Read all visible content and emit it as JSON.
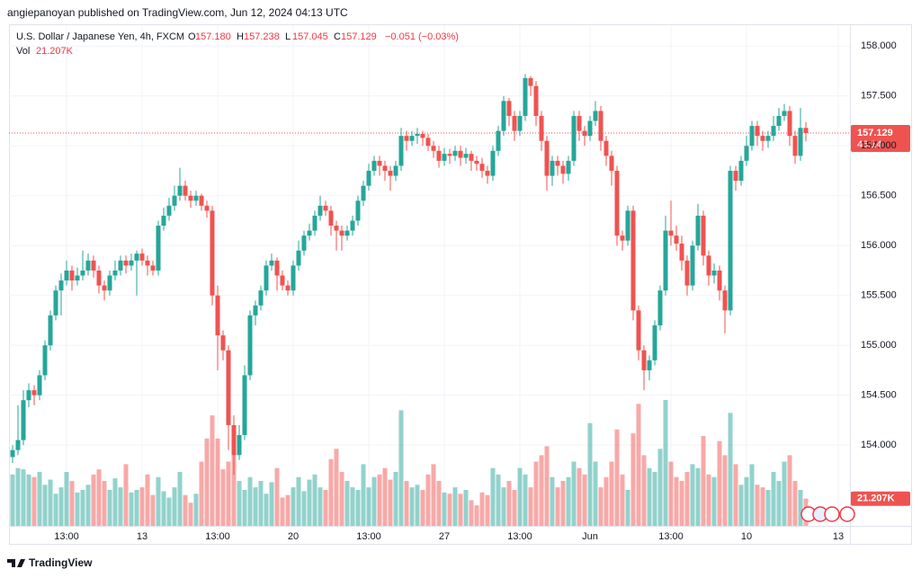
{
  "header": "angiepanoyan published on TradingView.com, Jun 12, 2024 04:13 UTC",
  "footer": "TradingView",
  "chart_data": {
    "type": "candlestick",
    "legend": {
      "symbol": "U.S. Dollar / Japanese Yen, 4h, FXCM",
      "keys": [
        "O",
        "H",
        "L",
        "C"
      ],
      "values": [
        "157.180",
        "157.238",
        "157.045",
        "157.129"
      ],
      "change": "−0.051 (−0.03%)",
      "volume_key": "Vol",
      "volume": "21.207K"
    },
    "countdown": "46:14",
    "last_volume_label": "21.207K",
    "up_color": "#26a69a",
    "down_color": "#ef5350",
    "ylim": [
      153.19,
      158.21
    ],
    "yticks": [
      {
        "value": 154,
        "label": "154.000"
      },
      {
        "value": 154.5,
        "label": "154.500"
      },
      {
        "value": 155,
        "label": "155.000"
      },
      {
        "value": 155.5,
        "label": "155.500"
      },
      {
        "value": 156,
        "label": "156.000"
      },
      {
        "value": 156.5,
        "label": "156.500"
      },
      {
        "value": 157,
        "label": "157.000"
      },
      {
        "value": 157.5,
        "label": "157.500"
      },
      {
        "value": 158,
        "label": "158.000"
      }
    ],
    "xticks": [
      {
        "value": 10,
        "label": "13:00"
      },
      {
        "value": 24,
        "label": "13"
      },
      {
        "value": 38,
        "label": "13:00"
      },
      {
        "value": 52,
        "label": "20"
      },
      {
        "value": 66,
        "label": "13:00"
      },
      {
        "value": 80,
        "label": "27"
      },
      {
        "value": 94,
        "label": "13:00"
      },
      {
        "value": 107,
        "label": "Jun"
      },
      {
        "value": 122,
        "label": "13:00"
      },
      {
        "value": 136,
        "label": "10"
      },
      {
        "value": 153,
        "label": "13"
      }
    ],
    "open": [
      153.88,
      153.95,
      154.05,
      154.45,
      154.55,
      154.5,
      154.7,
      155.0,
      155.3,
      155.55,
      155.65,
      155.75,
      155.65,
      155.7,
      155.75,
      155.85,
      155.75,
      155.6,
      155.55,
      155.7,
      155.75,
      155.85,
      155.8,
      155.85,
      155.92,
      155.85,
      155.8,
      155.75,
      156.2,
      156.3,
      156.4,
      156.5,
      156.6,
      156.5,
      156.45,
      156.5,
      156.4,
      156.35,
      155.5,
      155.1,
      154.95,
      154.2,
      153.9,
      154.1,
      154.7,
      155.3,
      155.4,
      155.55,
      155.8,
      155.85,
      155.7,
      155.6,
      155.55,
      155.8,
      155.95,
      156.1,
      156.15,
      156.3,
      156.4,
      156.35,
      156.2,
      156.15,
      156.1,
      156.15,
      156.25,
      156.45,
      156.6,
      156.75,
      156.85,
      156.8,
      156.75,
      156.7,
      156.8,
      157.1,
      157.05,
      157.1,
      157.12,
      157.08,
      157.0,
      156.95,
      156.85,
      156.92,
      156.9,
      156.95,
      156.88,
      156.92,
      156.85,
      156.82,
      156.75,
      156.7,
      156.95,
      157.15,
      157.45,
      157.3,
      157.15,
      157.3,
      157.68,
      157.6,
      157.3,
      157.05,
      156.7,
      156.85,
      156.8,
      156.72,
      156.85,
      157.3,
      157.15,
      157.1,
      157.25,
      157.35,
      157.05,
      156.9,
      156.75,
      156.1,
      156.05,
      156.35,
      155.35,
      154.95,
      154.75,
      154.85,
      155.2,
      155.55,
      156.15,
      156.1,
      156.02,
      155.85,
      155.6,
      156.0,
      156.3,
      155.9,
      155.7,
      155.75,
      155.55,
      155.35,
      156.75,
      156.65,
      156.85,
      157.0,
      157.2,
      157.1,
      157.05,
      157.1,
      157.2,
      157.3,
      157.35,
      157.1,
      156.9,
      157.18
    ],
    "high": [
      154.0,
      154.4,
      154.55,
      154.62,
      154.6,
      154.75,
      155.05,
      155.35,
      155.6,
      155.72,
      155.85,
      155.8,
      155.78,
      155.95,
      155.92,
      155.9,
      155.8,
      155.65,
      155.75,
      155.85,
      155.9,
      155.9,
      155.92,
      155.95,
      155.97,
      155.9,
      155.85,
      156.25,
      156.38,
      156.48,
      156.6,
      156.78,
      156.65,
      156.55,
      156.55,
      156.52,
      156.45,
      156.4,
      155.6,
      155.15,
      155.0,
      154.3,
      154.2,
      154.8,
      155.35,
      155.45,
      155.6,
      155.85,
      155.92,
      155.88,
      155.75,
      155.65,
      155.85,
      156.05,
      156.15,
      156.22,
      156.35,
      156.5,
      156.45,
      156.4,
      156.25,
      156.2,
      156.2,
      156.3,
      156.5,
      156.65,
      156.82,
      156.9,
      156.9,
      156.85,
      156.8,
      156.85,
      157.18,
      157.15,
      157.15,
      157.18,
      157.15,
      157.12,
      157.05,
      157.0,
      156.98,
      156.97,
      157.0,
      157.0,
      156.98,
      156.95,
      156.9,
      156.88,
      156.8,
      157.0,
      157.2,
      157.5,
      157.48,
      157.35,
      157.35,
      157.72,
      157.7,
      157.65,
      157.35,
      157.1,
      156.9,
      156.9,
      156.85,
      156.9,
      157.35,
      157.35,
      157.2,
      157.3,
      157.45,
      157.4,
      157.1,
      156.95,
      156.8,
      156.15,
      156.4,
      156.4,
      155.4,
      155.0,
      154.9,
      155.25,
      155.6,
      156.3,
      156.45,
      156.2,
      156.1,
      155.9,
      156.05,
      156.42,
      156.35,
      155.95,
      155.82,
      155.8,
      155.6,
      156.8,
      156.8,
      156.9,
      157.1,
      157.25,
      157.25,
      157.15,
      157.15,
      157.3,
      157.38,
      157.42,
      157.4,
      157.15,
      157.38,
      157.238
    ],
    "low": [
      153.82,
      153.9,
      154.0,
      154.38,
      154.4,
      154.45,
      154.65,
      154.95,
      155.25,
      155.3,
      155.6,
      155.55,
      155.6,
      155.65,
      155.7,
      155.68,
      155.52,
      155.45,
      155.5,
      155.65,
      155.7,
      155.72,
      155.75,
      155.5,
      155.8,
      155.7,
      155.7,
      155.7,
      156.15,
      156.25,
      156.35,
      156.45,
      156.45,
      156.38,
      156.4,
      156.35,
      156.28,
      155.4,
      154.75,
      154.85,
      153.95,
      153.7,
      153.85,
      154.05,
      154.65,
      155.2,
      155.35,
      155.5,
      155.75,
      155.55,
      155.55,
      155.5,
      155.5,
      155.75,
      155.9,
      156.05,
      156.1,
      156.25,
      156.3,
      156.1,
      155.95,
      155.95,
      156.05,
      156.1,
      156.2,
      156.4,
      156.55,
      156.7,
      156.7,
      156.65,
      156.55,
      156.65,
      156.75,
      156.95,
      157.0,
      157.02,
      157.0,
      156.95,
      156.88,
      156.78,
      156.8,
      156.82,
      156.85,
      156.8,
      156.82,
      156.75,
      156.75,
      156.68,
      156.62,
      156.65,
      156.9,
      157.1,
      157.2,
      157.05,
      157.1,
      157.25,
      157.5,
      157.2,
      156.95,
      156.55,
      156.6,
      156.7,
      156.62,
      156.65,
      156.8,
      157.05,
      157.0,
      157.05,
      157.2,
      156.95,
      156.8,
      156.6,
      156.0,
      155.95,
      156.0,
      155.25,
      154.85,
      154.55,
      154.65,
      154.8,
      155.15,
      155.5,
      156.0,
      155.95,
      155.75,
      155.5,
      155.55,
      155.95,
      155.8,
      155.6,
      155.62,
      155.45,
      155.12,
      155.3,
      156.55,
      156.6,
      156.8,
      156.95,
      157.0,
      156.95,
      156.98,
      157.05,
      157.15,
      157.25,
      157.0,
      156.82,
      156.85,
      157.045
    ],
    "close": [
      153.95,
      154.05,
      154.45,
      154.55,
      154.5,
      154.7,
      155.0,
      155.3,
      155.55,
      155.65,
      155.75,
      155.65,
      155.7,
      155.75,
      155.85,
      155.75,
      155.6,
      155.55,
      155.7,
      155.75,
      155.85,
      155.8,
      155.85,
      155.92,
      155.85,
      155.8,
      155.75,
      156.2,
      156.3,
      156.4,
      156.5,
      156.6,
      156.5,
      156.45,
      156.5,
      156.4,
      156.35,
      155.5,
      155.1,
      154.95,
      154.2,
      153.9,
      154.1,
      154.7,
      155.3,
      155.4,
      155.55,
      155.8,
      155.85,
      155.7,
      155.6,
      155.55,
      155.8,
      155.95,
      156.1,
      156.15,
      156.3,
      156.4,
      156.35,
      156.2,
      156.15,
      156.1,
      156.15,
      156.25,
      156.45,
      156.6,
      156.75,
      156.85,
      156.8,
      156.75,
      156.7,
      156.8,
      157.1,
      157.05,
      157.1,
      157.12,
      157.08,
      157.0,
      156.95,
      156.85,
      156.92,
      156.9,
      156.95,
      156.88,
      156.92,
      156.85,
      156.82,
      156.75,
      156.7,
      156.95,
      157.15,
      157.45,
      157.3,
      157.15,
      157.3,
      157.68,
      157.6,
      157.3,
      157.05,
      156.7,
      156.85,
      156.8,
      156.72,
      156.85,
      157.3,
      157.15,
      157.1,
      157.25,
      157.35,
      157.05,
      156.9,
      156.75,
      156.1,
      156.05,
      156.35,
      155.35,
      154.95,
      154.75,
      154.85,
      155.2,
      155.55,
      156.15,
      156.1,
      156.02,
      155.85,
      155.6,
      156.0,
      156.3,
      155.9,
      155.7,
      155.75,
      155.55,
      155.35,
      156.75,
      156.65,
      156.85,
      157.0,
      157.2,
      157.1,
      157.05,
      157.1,
      157.2,
      157.3,
      157.35,
      157.1,
      156.9,
      157.18,
      157.129
    ],
    "volume": [
      40000,
      45000,
      44000,
      40000,
      38000,
      42000,
      32000,
      36000,
      25000,
      30000,
      42000,
      35000,
      26000,
      28000,
      32000,
      40000,
      44000,
      35000,
      28000,
      37000,
      30000,
      48000,
      26000,
      28000,
      30000,
      40000,
      24000,
      38000,
      27000,
      22000,
      30000,
      42000,
      24000,
      18000,
      25000,
      50000,
      68000,
      86000,
      68000,
      44000,
      50000,
      60000,
      35000,
      28000,
      38000,
      30000,
      35000,
      25000,
      34000,
      45000,
      22000,
      24000,
      30000,
      38000,
      27000,
      36000,
      40000,
      30000,
      28000,
      52000,
      60000,
      42000,
      35000,
      30000,
      28000,
      48000,
      30000,
      38000,
      40000,
      45000,
      36000,
      42000,
      90000,
      35000,
      30000,
      32000,
      28000,
      40000,
      48000,
      35000,
      26000,
      25000,
      30000,
      25000,
      28000,
      20000,
      16000,
      26000,
      24000,
      45000,
      40000,
      30000,
      35000,
      28000,
      45000,
      40000,
      30000,
      50000,
      55000,
      62000,
      38000,
      30000,
      35000,
      38000,
      50000,
      45000,
      40000,
      80000,
      50000,
      30000,
      38000,
      50000,
      75000,
      40000,
      28000,
      72000,
      95000,
      55000,
      45000,
      42000,
      60000,
      98000,
      50000,
      38000,
      35000,
      42000,
      48000,
      45000,
      70000,
      40000,
      38000,
      66000,
      55000,
      88000,
      48000,
      32000,
      38000,
      48000,
      32000,
      30000,
      28000,
      42000,
      35000,
      50000,
      55000,
      35000,
      28000,
      21207
    ]
  }
}
